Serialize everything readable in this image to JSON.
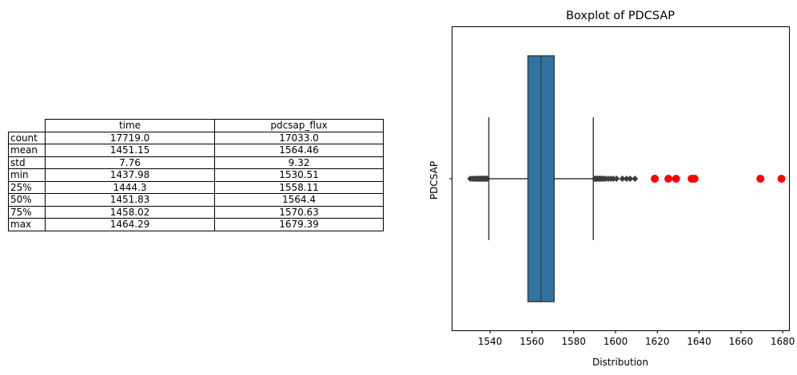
{
  "table": {
    "columns": [
      "time",
      "pdcsap_flux"
    ],
    "rows": [
      {
        "label": "count",
        "values": [
          "17719.0",
          "17033.0"
        ]
      },
      {
        "label": "mean",
        "values": [
          "1451.15",
          "1564.46"
        ]
      },
      {
        "label": "std",
        "values": [
          "7.76",
          "9.32"
        ]
      },
      {
        "label": "min",
        "values": [
          "1437.98",
          "1530.51"
        ]
      },
      {
        "label": "25%",
        "values": [
          "1444.3",
          "1558.11"
        ]
      },
      {
        "label": "50%",
        "values": [
          "1451.83",
          "1564.4"
        ]
      },
      {
        "label": "75%",
        "values": [
          "1458.02",
          "1570.63"
        ]
      },
      {
        "label": "max",
        "values": [
          "1464.29",
          "1679.39"
        ]
      }
    ]
  },
  "chart_data": {
    "type": "boxplot",
    "title": "Boxplot of PDCSAP",
    "xlabel": "Distribution",
    "ylabel": "PDCSAP",
    "xlim": [
      1522,
      1683
    ],
    "xticks": [
      1540,
      1560,
      1580,
      1600,
      1620,
      1640,
      1660,
      1680
    ],
    "grid": false,
    "box": {
      "q1": 1558.11,
      "median": 1564.4,
      "q3": 1570.63,
      "whisker_low": 1539.4,
      "whisker_high": 1589.4,
      "color": "#3274a1",
      "line_color": "#3d3d3d"
    },
    "fliers_low": [
      1530.51,
      1531.5,
      1532.3,
      1533.0,
      1533.6,
      1534.2,
      1534.8,
      1535.3,
      1535.8,
      1536.3,
      1536.8,
      1537.2,
      1537.7,
      1538.2,
      1538.7
    ],
    "fliers_high": [
      1590.0,
      1590.5,
      1591.0,
      1591.6,
      1592.2,
      1592.8,
      1593.5,
      1594.3,
      1595.2,
      1596.5,
      1597.8,
      1599.0,
      1600.5,
      1603.3,
      1605.3,
      1607.0,
      1609.3
    ],
    "outliers_red": [
      1618.8,
      1625.3,
      1629.0,
      1636.4,
      1637.8,
      1669.3,
      1679.39
    ],
    "outlier_color": "#ff0000"
  }
}
